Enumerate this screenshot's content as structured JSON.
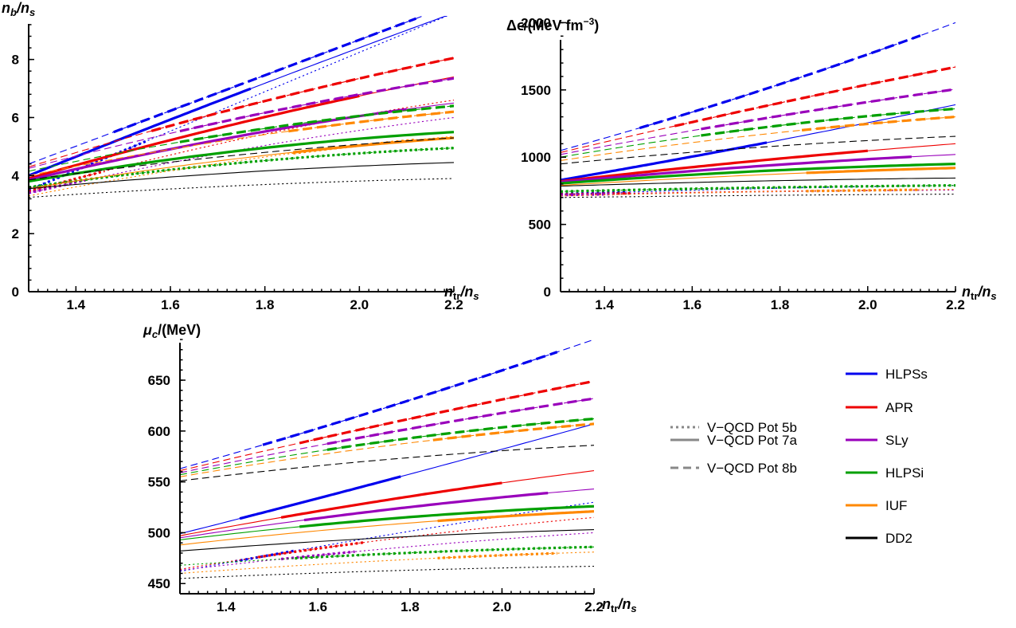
{
  "colors": {
    "HLPSs": "#0000ee",
    "APR": "#ee0000",
    "SLy": "#9900bb",
    "HLPSi": "#00a000",
    "IUF": "#ff8800",
    "DD2": "#000000"
  },
  "legend": {
    "styles": [
      {
        "label": "V−QCD Pot 5b",
        "style": "dotted"
      },
      {
        "label": "V−QCD Pot 7a",
        "style": "solid"
      },
      {
        "label": "V−QCD Pot 8b",
        "style": "dashed"
      }
    ],
    "models": [
      {
        "label": "HLPSs",
        "color": "#0000ee"
      },
      {
        "label": "APR",
        "color": "#ee0000"
      },
      {
        "label": "SLy",
        "color": "#9900bb"
      },
      {
        "label": "HLPSi",
        "color": "#00a000"
      },
      {
        "label": "IUF",
        "color": "#ff8800"
      },
      {
        "label": "DD2",
        "color": "#000000"
      }
    ]
  },
  "chart_data": [
    {
      "type": "line",
      "name": "nb",
      "ylabel_main": "n",
      "ylabel_sub1": "b",
      "ylabel_mid": "/n",
      "ylabel_sub2": "s",
      "xlabel_main": "n",
      "xlabel_sub1": "tr",
      "xlabel_mid": "/n",
      "xlabel_sub2": "s",
      "xlim": [
        1.3,
        2.2
      ],
      "ylim": [
        0,
        9.5
      ],
      "xticks": [
        "1.4",
        "1.6",
        "1.8",
        "2.0",
        "2.2"
      ],
      "xtick_values": [
        1.4,
        1.6,
        1.8,
        2.0,
        2.2
      ],
      "yticks": [
        "0",
        "2",
        "4",
        "6",
        "8"
      ],
      "ytick_values": [
        0,
        2,
        4,
        6,
        8
      ],
      "series": [
        {
          "model": "HLPSs",
          "pot": "5b",
          "y_start": 3.5,
          "y_end": 9.6,
          "curv": 0.0,
          "thick": [
            1.3,
            1.55
          ]
        },
        {
          "model": "APR",
          "pot": "5b",
          "y_start": 3.45,
          "y_end": 6.6,
          "curv": 0.3,
          "thick": [
            1.3,
            1.46
          ]
        },
        {
          "model": "SLy",
          "pot": "5b",
          "y_start": 3.4,
          "y_end": 6.0,
          "curv": 0.3,
          "thick": [
            1.3,
            1.42
          ]
        },
        {
          "model": "HLPSi",
          "pot": "5b",
          "y_start": 3.6,
          "y_end": 4.95,
          "curv": 0.5,
          "thick": [
            1.3,
            2.2
          ]
        },
        {
          "model": "IUF",
          "pot": "5b",
          "y_start": 3.3,
          "y_end": 5.35,
          "curv": 0.4,
          "thick": [
            1.86,
            2.12
          ]
        },
        {
          "model": "DD2",
          "pot": "5b",
          "y_start": 3.25,
          "y_end": 3.9,
          "curv": 0.5,
          "thick": null
        },
        {
          "model": "HLPSs",
          "pot": "7a",
          "y_start": 4.0,
          "y_end": 9.6,
          "curv": 0.05,
          "thick": [
            1.3,
            1.77
          ]
        },
        {
          "model": "APR",
          "pot": "7a",
          "y_start": 3.9,
          "y_end": 7.4,
          "curv": 0.2,
          "thick": [
            1.3,
            2.0
          ]
        },
        {
          "model": "SLy",
          "pot": "7a",
          "y_start": 3.85,
          "y_end": 6.5,
          "curv": 0.3,
          "thick": [
            1.3,
            2.1
          ]
        },
        {
          "model": "HLPSi",
          "pot": "7a",
          "y_start": 3.8,
          "y_end": 5.5,
          "curv": 0.5,
          "thick": [
            1.3,
            2.2
          ]
        },
        {
          "model": "IUF",
          "pot": "7a",
          "y_start": 3.55,
          "y_end": 5.3,
          "curv": 0.4,
          "thick": [
            1.86,
            2.2
          ]
        },
        {
          "model": "DD2",
          "pot": "7a",
          "y_start": 3.55,
          "y_end": 4.45,
          "curv": 0.5,
          "thick": null
        },
        {
          "model": "HLPSs",
          "pot": "8b",
          "y_start": 4.4,
          "y_end": 9.9,
          "curv": 0.0,
          "thick": [
            1.48,
            2.12
          ]
        },
        {
          "model": "APR",
          "pot": "8b",
          "y_start": 4.3,
          "y_end": 8.05,
          "curv": 0.2,
          "thick": [
            1.56,
            2.2
          ]
        },
        {
          "model": "SLy",
          "pot": "8b",
          "y_start": 4.25,
          "y_end": 7.35,
          "curv": 0.25,
          "thick": [
            1.62,
            2.2
          ]
        },
        {
          "model": "HLPSi",
          "pot": "8b",
          "y_start": 4.15,
          "y_end": 6.4,
          "curv": 0.4,
          "thick": [
            1.62,
            2.2
          ]
        },
        {
          "model": "IUF",
          "pot": "8b",
          "y_start": 4.0,
          "y_end": 6.2,
          "curv": 0.35,
          "thick": [
            1.85,
            2.2
          ]
        },
        {
          "model": "DD2",
          "pot": "8b",
          "y_start": 3.85,
          "y_end": 5.3,
          "curv": 0.4,
          "thick": null
        }
      ]
    },
    {
      "type": "line",
      "name": "de",
      "ylabel_main": "Δϵ/(MeV fm",
      "ylabel_sup": "−3",
      "ylabel_end": ")",
      "xlabel_main": "n",
      "xlabel_sub1": "tr",
      "xlabel_mid": "/n",
      "xlabel_sub2": "s",
      "xlim": [
        1.3,
        2.2
      ],
      "ylim": [
        0,
        2050
      ],
      "xticks": [
        "1.4",
        "1.6",
        "1.8",
        "2.0",
        "2.2"
      ],
      "xtick_values": [
        1.4,
        1.6,
        1.8,
        2.0,
        2.2
      ],
      "yticks": [
        "0",
        "500",
        "1000",
        "1500",
        "2000"
      ],
      "ytick_values": [
        0,
        500,
        1000,
        1500,
        2000
      ],
      "series": [
        {
          "model": "HLPSs",
          "pot": "5b",
          "y_start": 725,
          "y_end": 790,
          "curv": 0.5,
          "thick": [
            1.3,
            1.45
          ]
        },
        {
          "model": "APR",
          "pot": "5b",
          "y_start": 722,
          "y_end": 760,
          "curv": 0.5,
          "thick": [
            1.3,
            1.46
          ]
        },
        {
          "model": "SLy",
          "pot": "5b",
          "y_start": 718,
          "y_end": 755,
          "curv": 0.5,
          "thick": [
            1.3,
            1.42
          ]
        },
        {
          "model": "HLPSi",
          "pot": "5b",
          "y_start": 745,
          "y_end": 790,
          "curv": 0.5,
          "thick": [
            1.3,
            2.2
          ]
        },
        {
          "model": "IUF",
          "pot": "5b",
          "y_start": 712,
          "y_end": 760,
          "curv": 0.5,
          "thick": [
            1.86,
            2.12
          ]
        },
        {
          "model": "DD2",
          "pot": "5b",
          "y_start": 700,
          "y_end": 725,
          "curv": 0.5,
          "thick": null
        },
        {
          "model": "HLPSs",
          "pot": "7a",
          "y_start": 830,
          "y_end": 1390,
          "curv": -0.1,
          "thick": [
            1.3,
            1.77
          ]
        },
        {
          "model": "APR",
          "pot": "7a",
          "y_start": 820,
          "y_end": 1100,
          "curv": 0.2,
          "thick": [
            1.3,
            2.0
          ]
        },
        {
          "model": "SLy",
          "pot": "7a",
          "y_start": 815,
          "y_end": 1020,
          "curv": 0.3,
          "thick": [
            1.3,
            2.1
          ]
        },
        {
          "model": "HLPSi",
          "pot": "7a",
          "y_start": 805,
          "y_end": 950,
          "curv": 0.5,
          "thick": [
            1.3,
            2.2
          ]
        },
        {
          "model": "IUF",
          "pot": "7a",
          "y_start": 790,
          "y_end": 920,
          "curv": 0.4,
          "thick": [
            1.86,
            2.2
          ]
        },
        {
          "model": "DD2",
          "pot": "7a",
          "y_start": 785,
          "y_end": 845,
          "curv": 0.5,
          "thick": null
        },
        {
          "model": "HLPSs",
          "pot": "8b",
          "y_start": 1050,
          "y_end": 2000,
          "curv": -0.15,
          "thick": [
            1.48,
            2.12
          ]
        },
        {
          "model": "APR",
          "pot": "8b",
          "y_start": 1035,
          "y_end": 1670,
          "curv": 0.1,
          "thick": [
            1.56,
            2.2
          ]
        },
        {
          "model": "SLy",
          "pot": "8b",
          "y_start": 1020,
          "y_end": 1505,
          "curv": 0.15,
          "thick": [
            1.62,
            2.2
          ]
        },
        {
          "model": "HLPSi",
          "pot": "8b",
          "y_start": 1000,
          "y_end": 1360,
          "curv": 0.4,
          "thick": [
            1.62,
            2.2
          ]
        },
        {
          "model": "IUF",
          "pot": "8b",
          "y_start": 975,
          "y_end": 1300,
          "curv": 0.35,
          "thick": [
            1.85,
            2.2
          ]
        },
        {
          "model": "DD2",
          "pot": "8b",
          "y_start": 950,
          "y_end": 1155,
          "curv": 0.4,
          "thick": null
        }
      ]
    },
    {
      "type": "line",
      "name": "mu",
      "ylabel_main": "μ",
      "ylabel_sub1": "c",
      "ylabel_mid": "/(MeV)",
      "xlabel_main": "n",
      "xlabel_sub1": "tr",
      "xlabel_mid": "/n",
      "xlabel_sub2": "s",
      "xlim": [
        1.3,
        2.2
      ],
      "ylim": [
        440,
        690
      ],
      "xticks": [
        "1.4",
        "1.6",
        "1.8",
        "2.0",
        "2.2"
      ],
      "xtick_values": [
        1.4,
        1.6,
        1.8,
        2.0,
        2.2
      ],
      "yticks": [
        "450",
        "500",
        "550",
        "600",
        "650"
      ],
      "ytick_values": [
        450,
        500,
        550,
        600,
        650
      ],
      "series": [
        {
          "model": "HLPSs",
          "pot": "5b",
          "y_start": 462,
          "y_end": 530,
          "curv": 0.1,
          "thick": [
            1.42,
            1.55
          ]
        },
        {
          "model": "APR",
          "pot": "5b",
          "y_start": 464,
          "y_end": 515,
          "curv": 0.3,
          "thick": [
            1.47,
            1.7
          ]
        },
        {
          "model": "SLy",
          "pot": "5b",
          "y_start": 463,
          "y_end": 500,
          "curv": 0.3,
          "thick": [
            1.52,
            1.68
          ]
        },
        {
          "model": "HLPSi",
          "pot": "5b",
          "y_start": 468,
          "y_end": 486,
          "curv": 0.5,
          "thick": [
            1.55,
            2.2
          ]
        },
        {
          "model": "IUF",
          "pot": "5b",
          "y_start": 460,
          "y_end": 481,
          "curv": 0.4,
          "thick": [
            1.86,
            2.12
          ]
        },
        {
          "model": "DD2",
          "pot": "5b",
          "y_start": 455,
          "y_end": 467,
          "curv": 0.5,
          "thick": null
        },
        {
          "model": "HLPSs",
          "pot": "7a",
          "y_start": 499,
          "y_end": 607,
          "curv": -0.05,
          "thick": [
            1.43,
            1.78
          ]
        },
        {
          "model": "APR",
          "pot": "7a",
          "y_start": 497,
          "y_end": 561,
          "curv": 0.2,
          "thick": [
            1.52,
            2.0
          ]
        },
        {
          "model": "SLy",
          "pot": "7a",
          "y_start": 495,
          "y_end": 543,
          "curv": 0.3,
          "thick": [
            1.57,
            2.1
          ]
        },
        {
          "model": "HLPSi",
          "pot": "7a",
          "y_start": 493,
          "y_end": 526,
          "curv": 0.5,
          "thick": [
            1.56,
            2.2
          ]
        },
        {
          "model": "IUF",
          "pot": "7a",
          "y_start": 488,
          "y_end": 521,
          "curv": 0.4,
          "thick": [
            1.86,
            2.2
          ]
        },
        {
          "model": "DD2",
          "pot": "7a",
          "y_start": 482,
          "y_end": 503,
          "curv": 0.5,
          "thick": null
        },
        {
          "model": "HLPSs",
          "pot": "8b",
          "y_start": 563,
          "y_end": 690,
          "curv": -0.1,
          "thick": [
            1.48,
            2.12
          ]
        },
        {
          "model": "APR",
          "pot": "8b",
          "y_start": 561,
          "y_end": 649,
          "curv": 0.1,
          "thick": [
            1.56,
            2.2
          ]
        },
        {
          "model": "SLy",
          "pot": "8b",
          "y_start": 559,
          "y_end": 632,
          "curv": 0.15,
          "thick": [
            1.62,
            2.2
          ]
        },
        {
          "model": "HLPSi",
          "pot": "8b",
          "y_start": 557,
          "y_end": 612,
          "curv": 0.4,
          "thick": [
            1.62,
            2.2
          ]
        },
        {
          "model": "IUF",
          "pot": "8b",
          "y_start": 555,
          "y_end": 607,
          "curv": 0.35,
          "thick": [
            1.85,
            2.2
          ]
        },
        {
          "model": "DD2",
          "pot": "8b",
          "y_start": 551,
          "y_end": 586,
          "curv": 0.4,
          "thick": null
        }
      ]
    }
  ]
}
